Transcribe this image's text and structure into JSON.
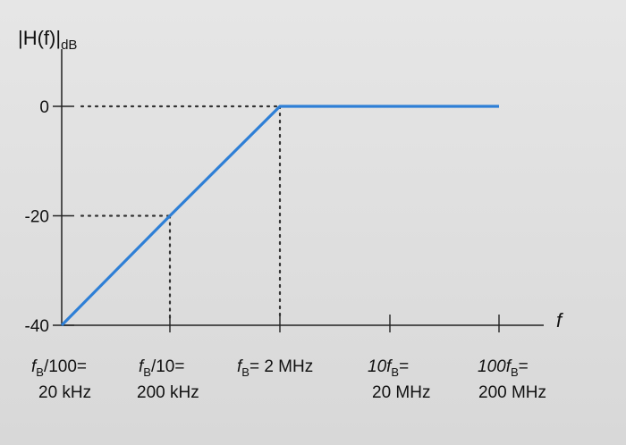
{
  "chart_data": {
    "type": "line",
    "ylabel": "|H(f)|dB",
    "xlabel": "f",
    "ylim": [
      -40,
      0
    ],
    "yticks": [
      "0",
      "-20",
      "-40"
    ],
    "xticks": [
      {
        "top": [
          "f",
          "B",
          "/100="
        ],
        "bottom": "20 kHz"
      },
      {
        "top": [
          "f",
          "B",
          "/10="
        ],
        "bottom": "200 kHz"
      },
      {
        "top": [
          "f",
          "B",
          "= 2 MHz"
        ],
        "bottom": ""
      },
      {
        "top": [
          "10f",
          "B",
          "="
        ],
        "bottom": "20 MHz"
      },
      {
        "top": [
          "100f",
          "B",
          "="
        ],
        "bottom": "200 MHz"
      }
    ],
    "series": [
      {
        "x": [
          "20 kHz",
          "200 kHz",
          "2 MHz",
          "20 MHz",
          "200 MHz"
        ],
        "values": [
          -40,
          -20,
          0,
          0,
          0
        ]
      }
    ],
    "line_color": "#2e7fd6",
    "grid": false
  }
}
